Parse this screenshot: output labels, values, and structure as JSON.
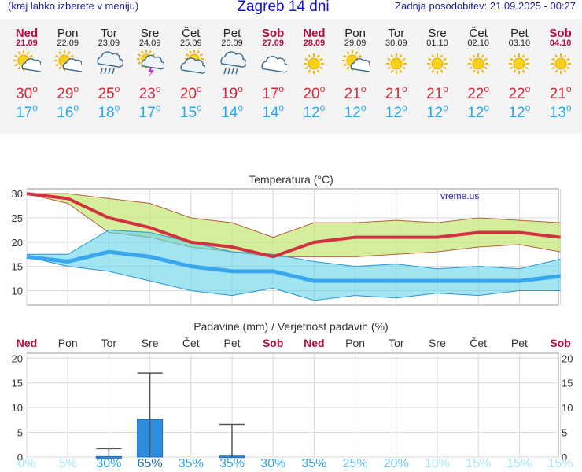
{
  "header": {
    "hint": "(kraj lahko izberete v meniju)",
    "title": "Zagreb 14 dni",
    "updated": "Zadnja posodobitev: 21.09.2025 - 00:27"
  },
  "days": [
    {
      "name": "Ned",
      "date": "21.09",
      "weekend": true,
      "icon": "partly-cloudy-icon",
      "tmax": "30",
      "tmin": "17"
    },
    {
      "name": "Pon",
      "date": "22.09",
      "weekend": false,
      "icon": "partly-cloudy-icon",
      "tmax": "29",
      "tmin": "16"
    },
    {
      "name": "Tor",
      "date": "23.09",
      "weekend": false,
      "icon": "rain-cloud-icon",
      "tmax": "25",
      "tmin": "18"
    },
    {
      "name": "Sre",
      "date": "24.09",
      "weekend": false,
      "icon": "thunderstorm-icon",
      "tmax": "23",
      "tmin": "17"
    },
    {
      "name": "Čet",
      "date": "25.09",
      "weekend": false,
      "icon": "cloudy-sun-icon",
      "tmax": "20",
      "tmin": "15"
    },
    {
      "name": "Pet",
      "date": "26.09",
      "weekend": false,
      "icon": "rain-cloud-icon",
      "tmax": "19",
      "tmin": "14"
    },
    {
      "name": "Sob",
      "date": "27.09",
      "weekend": true,
      "icon": "cloudy-icon",
      "tmax": "17",
      "tmin": "14"
    },
    {
      "name": "Ned",
      "date": "28.09",
      "weekend": true,
      "icon": "sunny-icon",
      "tmax": "20",
      "tmin": "12"
    },
    {
      "name": "Pon",
      "date": "29.09",
      "weekend": false,
      "icon": "partly-cloudy-icon",
      "tmax": "21",
      "tmin": "12"
    },
    {
      "name": "Tor",
      "date": "30.09",
      "weekend": false,
      "icon": "sunny-icon",
      "tmax": "21",
      "tmin": "12"
    },
    {
      "name": "Sre",
      "date": "01.10",
      "weekend": false,
      "icon": "sunny-icon",
      "tmax": "21",
      "tmin": "12"
    },
    {
      "name": "Čet",
      "date": "02.10",
      "weekend": false,
      "icon": "sunny-icon",
      "tmax": "22",
      "tmin": "12"
    },
    {
      "name": "Pet",
      "date": "03.10",
      "weekend": false,
      "icon": "sunny-icon",
      "tmax": "22",
      "tmin": "12"
    },
    {
      "name": "Sob",
      "date": "04.10",
      "weekend": true,
      "icon": "sunny-icon",
      "tmax": "21",
      "tmin": "13"
    }
  ],
  "degree_symbol": "o",
  "colors": {
    "weekend": "#bb0b3c",
    "max_temp": "#d8283a",
    "min_temp": "#2aa6ea",
    "bar": "#2f8de0",
    "max_band": "#c7e87a",
    "min_band": "#64d3ea"
  },
  "chart_data": [
    {
      "type": "line",
      "title": "Temperatura (°C)",
      "watermark": "vreme.us",
      "ylim": [
        7,
        31
      ],
      "yticks": [
        10,
        15,
        20,
        25,
        30
      ],
      "x": [
        0,
        1,
        2,
        3,
        4,
        5,
        6,
        7,
        8,
        9,
        10,
        11,
        12,
        13
      ],
      "series": [
        {
          "name": "max",
          "values": [
            30,
            29,
            25,
            23,
            20,
            19,
            17,
            20,
            21,
            21,
            21,
            22,
            22,
            21
          ]
        },
        {
          "name": "max_upper",
          "values": [
            30,
            30,
            29,
            28,
            25,
            24,
            21,
            24,
            24,
            24.5,
            24,
            25,
            24.5,
            24
          ]
        },
        {
          "name": "max_lower",
          "values": [
            30,
            28,
            22,
            21,
            19,
            18,
            17,
            17,
            17,
            17.5,
            18,
            19,
            19.5,
            18
          ]
        },
        {
          "name": "min",
          "values": [
            17,
            16,
            18,
            17,
            15,
            14,
            14,
            12,
            12,
            12,
            12,
            12,
            12,
            13
          ]
        },
        {
          "name": "min_upper",
          "values": [
            17.5,
            17.5,
            22.5,
            22,
            20,
            18,
            17.5,
            16,
            15,
            15.5,
            14.5,
            15,
            14.5,
            16.5
          ]
        },
        {
          "name": "min_lower",
          "values": [
            17,
            15,
            14,
            12,
            10,
            9,
            10.5,
            8,
            9,
            8.5,
            9.5,
            9,
            10,
            10
          ]
        }
      ],
      "grid": true
    },
    {
      "type": "bar",
      "title": "Padavine (mm) / Verjetnost padavin (%)",
      "ylim": [
        0,
        21
      ],
      "yticks": [
        0,
        5,
        10,
        15,
        20
      ],
      "categories": [
        "Ned",
        "Pon",
        "Tor",
        "Sre",
        "Čet",
        "Pet",
        "Sob",
        "Ned",
        "Pon",
        "Tor",
        "Sre",
        "Čet",
        "Pet",
        "Sob"
      ],
      "values": [
        0,
        0,
        0.1,
        7.6,
        0,
        0.2,
        0,
        0,
        0,
        0,
        0,
        0,
        0,
        0
      ],
      "error_high": [
        null,
        null,
        1.7,
        17,
        null,
        6.6,
        null,
        null,
        null,
        null,
        null,
        null,
        null,
        null
      ],
      "probability": [
        "0%",
        "5%",
        "30%",
        "65%",
        "35%",
        "35%",
        "30%",
        "35%",
        "25%",
        "20%",
        "10%",
        "15%",
        "15%",
        "15%"
      ],
      "probability_colors": [
        "#a6e4f6",
        "#a6e4f6",
        "#2ea4e6",
        "#1f6fb0",
        "#2ea4e6",
        "#2ea4e6",
        "#2ea4e6",
        "#2ea4e6",
        "#6cc6ee",
        "#6cc6ee",
        "#a6e4f6",
        "#a6e4f6",
        "#a6e4f6",
        "#a6e4f6"
      ],
      "grid": true
    }
  ]
}
